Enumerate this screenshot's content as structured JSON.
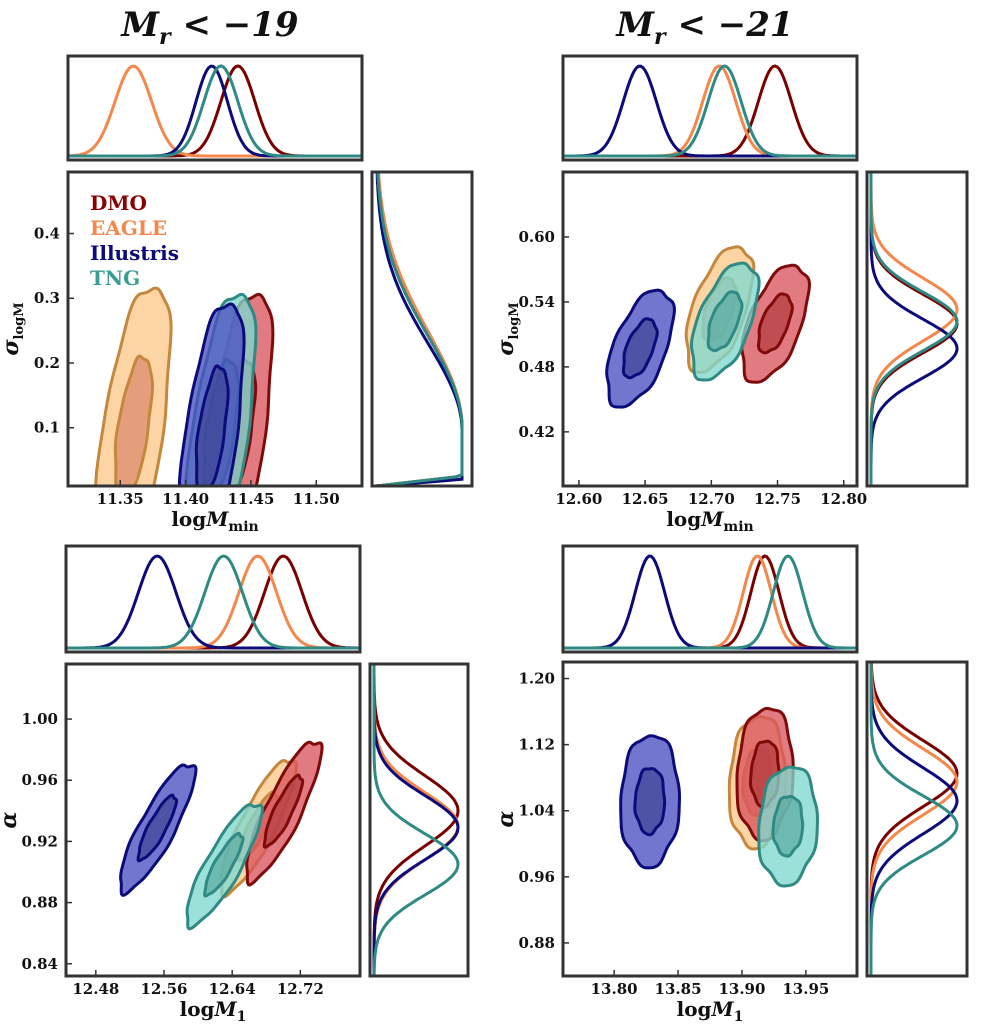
{
  "titles": {
    "left": {
      "prefix": "M",
      "sub": "r",
      "rest": " < −19"
    },
    "right": {
      "prefix": "M",
      "sub": "r",
      "rest": " < −21"
    }
  },
  "legend": [
    {
      "label": "DMO",
      "color": "#8b0000"
    },
    {
      "label": "EAGLE",
      "color": "#f4874b"
    },
    {
      "label": "Illustris",
      "color": "#0b0b7a"
    },
    {
      "label": "TNG",
      "color": "#3a9d94"
    }
  ],
  "colors": {
    "DMO": {
      "line": "#7e0a0a",
      "outer": "#d9545e",
      "inner": "#b23a3f"
    },
    "EAGLE": {
      "line": "#c4873d",
      "outer": "#fdc88a",
      "inner": "#d9876a"
    },
    "Illustris": {
      "line": "#0b0b7a",
      "outer": "#4a4fc0",
      "inner": "#3e4596"
    },
    "TNG": {
      "line": "#2f8a84",
      "outer": "#7fd8cf",
      "inner": "#5aa9a1"
    }
  },
  "chart_data": [
    {
      "id": "top-left",
      "type": "contour",
      "xlabel": {
        "main": "logM",
        "sub": "min"
      },
      "ylabel": {
        "main": "σ",
        "sub": "logM"
      },
      "xlim": [
        11.31,
        11.535
      ],
      "ylim": [
        0.01,
        0.495
      ],
      "xticks": [
        "11.35",
        "11.40",
        "11.45",
        "11.50"
      ],
      "yticks": [
        "0.1",
        "0.2",
        "0.3",
        "0.4"
      ],
      "show_legend": true,
      "series": [
        {
          "name": "EAGLE",
          "cx": 11.36,
          "cy": 0.1,
          "sx": 0.014,
          "sy": 0.11,
          "rho": 0.55,
          "mode": "half"
        },
        {
          "name": "DMO",
          "cx": 11.44,
          "cy": 0.1,
          "sx": 0.013,
          "sy": 0.105,
          "rho": 0.55,
          "mode": "half"
        },
        {
          "name": "TNG",
          "cx": 11.427,
          "cy": 0.1,
          "sx": 0.013,
          "sy": 0.105,
          "rho": 0.55,
          "mode": "half"
        },
        {
          "name": "Illustris",
          "cx": 11.42,
          "cy": 0.095,
          "sx": 0.012,
          "sy": 0.1,
          "rho": 0.55,
          "mode": "half"
        }
      ]
    },
    {
      "id": "top-right",
      "type": "contour",
      "xlabel": {
        "main": "logM",
        "sub": "min"
      },
      "ylabel": {
        "main": "σ",
        "sub": "logM"
      },
      "xlim": [
        12.588,
        12.81
      ],
      "ylim": [
        0.37,
        0.66
      ],
      "xticks": [
        "12.60",
        "12.65",
        "12.70",
        "12.75",
        "12.80"
      ],
      "yticks": [
        "0.42",
        "0.48",
        "0.54",
        "0.60"
      ],
      "show_legend": false,
      "series": [
        {
          "name": "DMO",
          "cx": 12.748,
          "cy": 0.52,
          "sx": 0.0125,
          "sy": 0.027,
          "rho": 0.55,
          "mode": "full"
        },
        {
          "name": "EAGLE",
          "cx": 12.706,
          "cy": 0.533,
          "sx": 0.0125,
          "sy": 0.029,
          "rho": 0.55,
          "mode": "full"
        },
        {
          "name": "TNG",
          "cx": 12.71,
          "cy": 0.522,
          "sx": 0.0125,
          "sy": 0.027,
          "rho": 0.55,
          "mode": "full"
        },
        {
          "name": "Illustris",
          "cx": 12.646,
          "cy": 0.497,
          "sx": 0.0125,
          "sy": 0.027,
          "rho": 0.55,
          "mode": "full"
        }
      ]
    },
    {
      "id": "bottom-left",
      "type": "contour",
      "xlabel": {
        "main": "logM",
        "sub": "1"
      },
      "ylabel": {
        "main": "α",
        "sub": ""
      },
      "xlim": [
        12.445,
        12.79
      ],
      "ylim": [
        0.832,
        1.036
      ],
      "xticks": [
        "12.48",
        "12.56",
        "12.64",
        "12.72"
      ],
      "yticks": [
        "0.84",
        "0.88",
        "0.92",
        "0.96",
        "1.00"
      ],
      "show_legend": false,
      "series": [
        {
          "name": "DMO",
          "cx": 12.7,
          "cy": 0.94,
          "sx": 0.022,
          "sy": 0.023,
          "rho": 0.85,
          "mode": "full"
        },
        {
          "name": "EAGLE",
          "cx": 12.67,
          "cy": 0.93,
          "sx": 0.022,
          "sy": 0.022,
          "rho": 0.85,
          "mode": "full"
        },
        {
          "name": "TNG",
          "cx": 12.63,
          "cy": 0.905,
          "sx": 0.022,
          "sy": 0.02,
          "rho": 0.85,
          "mode": "full"
        },
        {
          "name": "Illustris",
          "cx": 12.552,
          "cy": 0.929,
          "sx": 0.022,
          "sy": 0.021,
          "rho": 0.85,
          "mode": "full"
        }
      ]
    },
    {
      "id": "bottom-right",
      "type": "contour",
      "xlabel": {
        "main": "logM",
        "sub": "1"
      },
      "ylabel": {
        "main": "α",
        "sub": ""
      },
      "xlim": [
        13.76,
        13.99
      ],
      "ylim": [
        0.84,
        1.22
      ],
      "xticks": [
        "13.80",
        "13.85",
        "13.90",
        "13.95"
      ],
      "yticks": [
        "0.88",
        "0.96",
        "1.04",
        "1.12",
        "1.20"
      ],
      "show_legend": false,
      "series": [
        {
          "name": "DMO",
          "cx": 13.918,
          "cy": 1.085,
          "sx": 0.011,
          "sy": 0.04,
          "rho": 0.1,
          "mode": "full"
        },
        {
          "name": "EAGLE",
          "cx": 13.912,
          "cy": 1.075,
          "sx": 0.011,
          "sy": 0.04,
          "rho": 0.1,
          "mode": "full"
        },
        {
          "name": "TNG",
          "cx": 13.936,
          "cy": 1.022,
          "sx": 0.0115,
          "sy": 0.036,
          "rho": 0.1,
          "mode": "full"
        },
        {
          "name": "Illustris",
          "cx": 13.828,
          "cy": 1.052,
          "sx": 0.0115,
          "sy": 0.04,
          "rho": 0.05,
          "mode": "full"
        }
      ]
    }
  ]
}
